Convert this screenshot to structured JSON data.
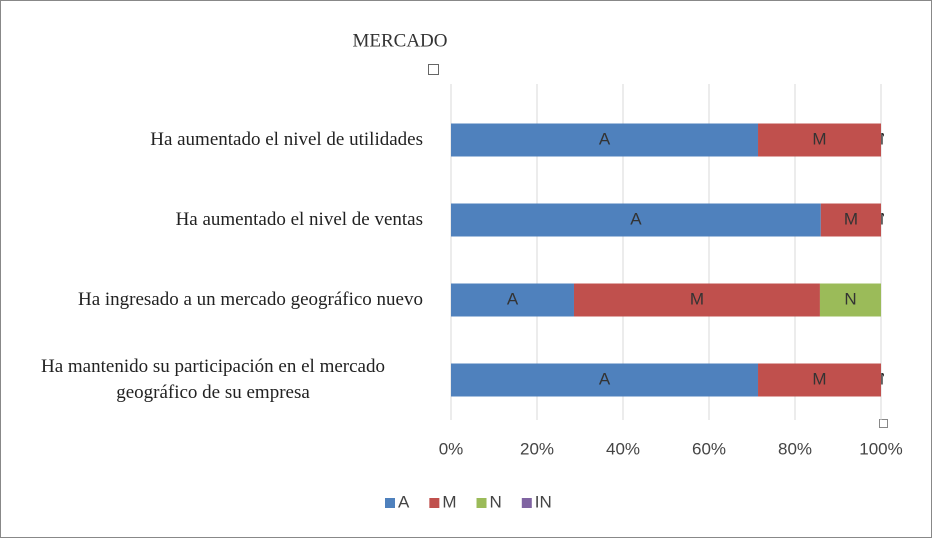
{
  "chart_data": {
    "type": "stacked-barh",
    "title": "MERCADO",
    "categories": [
      "Ha aumentado el nivel de utilidades",
      "Ha aumentado el nivel de ventas",
      "Ha ingresado a un mercado geográfico nuevo",
      "Ha mantenido su participación en el mercado geográfico de su empresa"
    ],
    "series": [
      {
        "name": "A",
        "color": "#4f81bd",
        "values": [
          71.4,
          86,
          28.6,
          71.4
        ],
        "data_labels": true
      },
      {
        "name": "M",
        "color": "#c0504d",
        "values": [
          28.6,
          14,
          57.2,
          28.6
        ],
        "data_labels": true
      },
      {
        "name": "N",
        "color": "#9bbb59",
        "values": [
          0,
          0,
          14.2,
          0
        ],
        "data_labels": true
      },
      {
        "name": "IN",
        "color": "#8064a2",
        "values": [
          0,
          0,
          0,
          0
        ],
        "data_labels": false
      }
    ],
    "xlim": [
      0,
      100
    ],
    "xticks": [
      {
        "value": 0,
        "label": "0%"
      },
      {
        "value": 20,
        "label": "20%"
      },
      {
        "value": 40,
        "label": "40%"
      },
      {
        "value": 60,
        "label": "60%"
      },
      {
        "value": 80,
        "label": "80%"
      },
      {
        "value": 100,
        "label": "100%"
      }
    ],
    "grid": true,
    "legend": "bottom"
  }
}
